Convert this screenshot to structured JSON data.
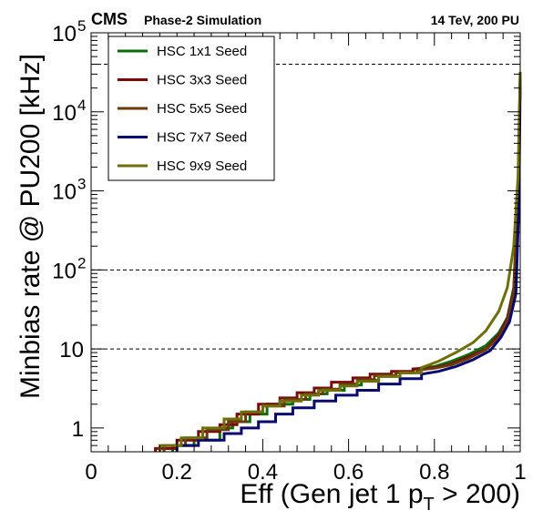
{
  "header": {
    "experiment": "CMS",
    "subtitle": "Phase-2 Simulation",
    "conditions": "14 TeV, 200 PU"
  },
  "chart_data": {
    "type": "line",
    "xlabel": "Eff (Gen jet 1 p_T > 200)",
    "xlabel_main": "Eff (Gen jet 1 p",
    "xlabel_sub": "T",
    "xlabel_tail": " > 200)",
    "ylabel": "Minbias rate @ PU200 [kHz]",
    "xlim": [
      0,
      1
    ],
    "ylim": [
      0.5,
      100000
    ],
    "yscale": "log",
    "x_ticks": [
      {
        "v": 0,
        "label": "0"
      },
      {
        "v": 0.2,
        "label": "0.2"
      },
      {
        "v": 0.4,
        "label": "0.4"
      },
      {
        "v": 0.6,
        "label": "0.6"
      },
      {
        "v": 0.8,
        "label": "0.8"
      },
      {
        "v": 1,
        "label": "1"
      }
    ],
    "y_ticks": [
      {
        "v": 1,
        "label": "1"
      },
      {
        "v": 10,
        "label": "10"
      },
      {
        "v": 100,
        "label": "10",
        "exp": "2"
      },
      {
        "v": 1000,
        "label": "10",
        "exp": "3"
      },
      {
        "v": 10000,
        "label": "10",
        "exp": "4"
      },
      {
        "v": 100000,
        "label": "10",
        "exp": "5"
      }
    ],
    "reference_lines": [
      10,
      100,
      40000
    ],
    "legend_position": "top-left",
    "series": [
      {
        "name": "HSC 1x1 Seed",
        "color": "#0a6e0a",
        "points": [
          [
            0.19,
            0.5
          ],
          [
            0.19,
            0.6
          ],
          [
            0.24,
            0.6
          ],
          [
            0.24,
            0.7
          ],
          [
            0.3,
            0.7
          ],
          [
            0.3,
            1.0
          ],
          [
            0.33,
            1.0
          ],
          [
            0.33,
            1.2
          ],
          [
            0.37,
            1.2
          ],
          [
            0.37,
            1.5
          ],
          [
            0.41,
            1.5
          ],
          [
            0.41,
            2.0
          ],
          [
            0.47,
            2.0
          ],
          [
            0.47,
            2.3
          ],
          [
            0.51,
            2.3
          ],
          [
            0.51,
            2.7
          ],
          [
            0.55,
            2.7
          ],
          [
            0.55,
            3.0
          ],
          [
            0.59,
            3.0
          ],
          [
            0.59,
            3.5
          ],
          [
            0.63,
            3.5
          ],
          [
            0.63,
            4.0
          ],
          [
            0.67,
            4.0
          ],
          [
            0.67,
            4.5
          ],
          [
            0.71,
            4.5
          ],
          [
            0.71,
            5.0
          ],
          [
            0.75,
            5.0
          ],
          [
            0.75,
            5.5
          ],
          [
            0.8,
            6.0
          ],
          [
            0.84,
            7.0
          ],
          [
            0.88,
            8.5
          ],
          [
            0.92,
            11
          ],
          [
            0.95,
            16
          ],
          [
            0.97,
            25
          ],
          [
            0.985,
            60
          ],
          [
            0.995,
            1000
          ],
          [
            1.0,
            30000
          ]
        ]
      },
      {
        "name": "HSC 3x3 Seed",
        "color": "#7a0a0a",
        "points": [
          [
            0.15,
            0.5
          ],
          [
            0.15,
            0.55
          ],
          [
            0.2,
            0.55
          ],
          [
            0.2,
            0.7
          ],
          [
            0.25,
            0.7
          ],
          [
            0.25,
            0.9
          ],
          [
            0.3,
            0.9
          ],
          [
            0.3,
            1.1
          ],
          [
            0.34,
            1.1
          ],
          [
            0.34,
            1.5
          ],
          [
            0.39,
            1.5
          ],
          [
            0.39,
            2.0
          ],
          [
            0.44,
            2.0
          ],
          [
            0.44,
            2.4
          ],
          [
            0.48,
            2.4
          ],
          [
            0.48,
            2.8
          ],
          [
            0.52,
            2.8
          ],
          [
            0.52,
            3.2
          ],
          [
            0.56,
            3.2
          ],
          [
            0.56,
            3.8
          ],
          [
            0.61,
            3.8
          ],
          [
            0.61,
            4.3
          ],
          [
            0.65,
            4.3
          ],
          [
            0.65,
            4.8
          ],
          [
            0.7,
            4.8
          ],
          [
            0.7,
            5.2
          ],
          [
            0.75,
            5.2
          ],
          [
            0.75,
            5.6
          ],
          [
            0.8,
            5.8
          ],
          [
            0.84,
            6.5
          ],
          [
            0.88,
            8.0
          ],
          [
            0.92,
            10
          ],
          [
            0.95,
            15
          ],
          [
            0.97,
            24
          ],
          [
            0.985,
            55
          ],
          [
            0.995,
            900
          ],
          [
            1.0,
            28000
          ]
        ]
      },
      {
        "name": "HSC 5x5 Seed",
        "color": "#6b3a0a",
        "points": [
          [
            0.17,
            0.5
          ],
          [
            0.17,
            0.6
          ],
          [
            0.22,
            0.6
          ],
          [
            0.22,
            0.75
          ],
          [
            0.27,
            0.75
          ],
          [
            0.27,
            0.95
          ],
          [
            0.32,
            0.95
          ],
          [
            0.32,
            1.2
          ],
          [
            0.36,
            1.2
          ],
          [
            0.36,
            1.6
          ],
          [
            0.4,
            1.6
          ],
          [
            0.4,
            1.9
          ],
          [
            0.45,
            1.9
          ],
          [
            0.45,
            2.3
          ],
          [
            0.5,
            2.3
          ],
          [
            0.5,
            2.7
          ],
          [
            0.54,
            2.7
          ],
          [
            0.54,
            3.1
          ],
          [
            0.58,
            3.1
          ],
          [
            0.58,
            3.6
          ],
          [
            0.62,
            3.6
          ],
          [
            0.62,
            4.1
          ],
          [
            0.66,
            4.1
          ],
          [
            0.66,
            4.6
          ],
          [
            0.71,
            4.6
          ],
          [
            0.71,
            5.0
          ],
          [
            0.76,
            5.0
          ],
          [
            0.76,
            5.4
          ],
          [
            0.8,
            5.7
          ],
          [
            0.84,
            6.3
          ],
          [
            0.88,
            7.6
          ],
          [
            0.92,
            9.8
          ],
          [
            0.95,
            14
          ],
          [
            0.97,
            22
          ],
          [
            0.985,
            50
          ],
          [
            0.995,
            800
          ],
          [
            1.0,
            27000
          ]
        ]
      },
      {
        "name": "HSC 7x7 Seed",
        "color": "#0a0a6e",
        "points": [
          [
            0.2,
            0.5
          ],
          [
            0.2,
            0.6
          ],
          [
            0.25,
            0.6
          ],
          [
            0.25,
            0.7
          ],
          [
            0.31,
            0.7
          ],
          [
            0.31,
            0.85
          ],
          [
            0.35,
            0.85
          ],
          [
            0.35,
            1.0
          ],
          [
            0.39,
            1.0
          ],
          [
            0.39,
            1.2
          ],
          [
            0.43,
            1.2
          ],
          [
            0.43,
            1.5
          ],
          [
            0.47,
            1.5
          ],
          [
            0.47,
            1.8
          ],
          [
            0.52,
            1.8
          ],
          [
            0.52,
            2.2
          ],
          [
            0.57,
            2.2
          ],
          [
            0.57,
            2.6
          ],
          [
            0.62,
            2.6
          ],
          [
            0.62,
            3.0
          ],
          [
            0.67,
            3.0
          ],
          [
            0.67,
            3.6
          ],
          [
            0.72,
            3.6
          ],
          [
            0.72,
            4.2
          ],
          [
            0.77,
            4.2
          ],
          [
            0.77,
            4.8
          ],
          [
            0.81,
            5.2
          ],
          [
            0.85,
            6.0
          ],
          [
            0.89,
            7.3
          ],
          [
            0.93,
            9.5
          ],
          [
            0.955,
            14
          ],
          [
            0.975,
            22
          ],
          [
            0.99,
            50
          ],
          [
            0.997,
            700
          ],
          [
            1.0,
            26000
          ]
        ]
      },
      {
        "name": "HSC 9x9 Seed",
        "color": "#6e6e0a",
        "points": [
          [
            0.16,
            0.5
          ],
          [
            0.16,
            0.6
          ],
          [
            0.21,
            0.6
          ],
          [
            0.21,
            0.75
          ],
          [
            0.26,
            0.75
          ],
          [
            0.26,
            1.0
          ],
          [
            0.31,
            1.0
          ],
          [
            0.31,
            1.3
          ],
          [
            0.35,
            1.3
          ],
          [
            0.35,
            1.6
          ],
          [
            0.4,
            1.6
          ],
          [
            0.4,
            1.9
          ],
          [
            0.44,
            1.9
          ],
          [
            0.44,
            2.2
          ],
          [
            0.49,
            2.2
          ],
          [
            0.49,
            2.6
          ],
          [
            0.53,
            2.6
          ],
          [
            0.53,
            3.0
          ],
          [
            0.58,
            3.0
          ],
          [
            0.58,
            3.4
          ],
          [
            0.62,
            3.4
          ],
          [
            0.62,
            3.9
          ],
          [
            0.67,
            3.9
          ],
          [
            0.67,
            4.5
          ],
          [
            0.72,
            4.5
          ],
          [
            0.72,
            5.0
          ],
          [
            0.77,
            5.0
          ],
          [
            0.77,
            5.8
          ],
          [
            0.81,
            7.0
          ],
          [
            0.85,
            9.0
          ],
          [
            0.89,
            12
          ],
          [
            0.92,
            17
          ],
          [
            0.95,
            30
          ],
          [
            0.97,
            60
          ],
          [
            0.985,
            200
          ],
          [
            0.995,
            1500
          ],
          [
            1.0,
            32000
          ]
        ]
      }
    ]
  }
}
